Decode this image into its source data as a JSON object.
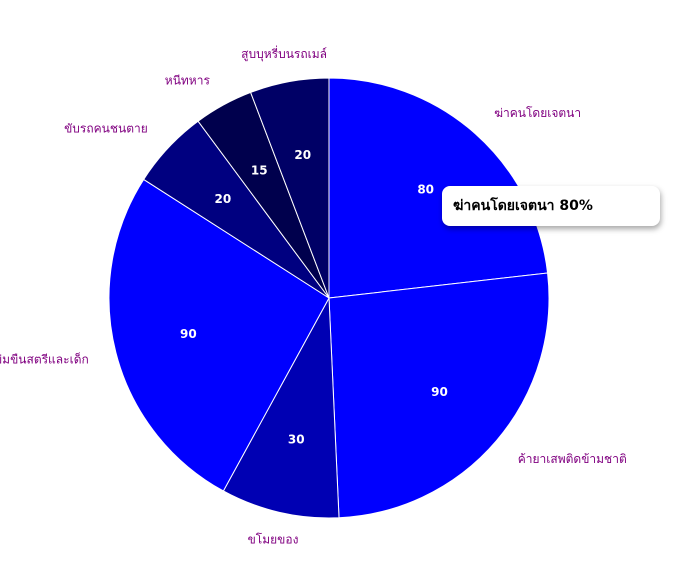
{
  "chart_data": {
    "type": "pie",
    "categories": [
      "ฆ่าคนโดยเจตนา",
      "ค้ายาเสพติดข้ามชาติ",
      "ขโมยของ",
      "ฆ่าข่มขืนสตรีและเด็ก",
      "ขับรถคนชนตาย",
      "หนีทหาร",
      "สูบบุหรี่บนรถเมล์"
    ],
    "values": [
      80,
      90,
      30,
      90,
      20,
      15,
      20
    ],
    "colors": [
      "#0000ff",
      "#0000ff",
      "#0000b3",
      "#0000ff",
      "#000080",
      "#00004d",
      "#000066"
    ]
  },
  "tooltip": {
    "text": "ฆ่าคนโดยเจตนา 80%"
  }
}
